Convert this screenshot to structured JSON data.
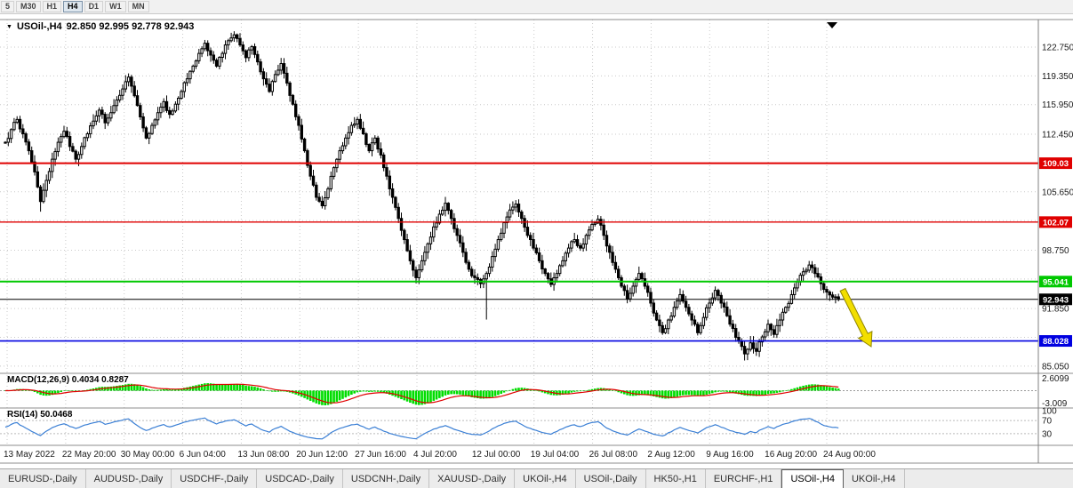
{
  "toolbar": {
    "timeframes": [
      "5",
      "M30",
      "H1",
      "H4",
      "D1",
      "W1",
      "MN"
    ],
    "active": "H4"
  },
  "chart": {
    "symbol": "USOil-,H4",
    "ohlc": "92.850 92.995 92.778 92.943",
    "open": "92.850",
    "high": "92.995",
    "low": "92.778",
    "close": "92.943"
  },
  "price_axis": {
    "ticks": [
      {
        "label": "122.750",
        "price": 122.75,
        "visible": true
      },
      {
        "label": "119.350",
        "price": 119.35,
        "visible": true
      },
      {
        "label": "115.950",
        "price": 115.95,
        "visible": true
      },
      {
        "label": "112.450",
        "price": 112.45,
        "visible": true
      },
      {
        "label": "109.050",
        "price": 109.05,
        "visible": false
      },
      {
        "label": "105.650",
        "price": 105.65,
        "visible": true
      },
      {
        "label": "102.250",
        "price": 102.25,
        "visible": false
      },
      {
        "label": "98.750",
        "price": 98.75,
        "visible": true
      },
      {
        "label": "95.350",
        "price": 95.35,
        "visible": false
      },
      {
        "label": "91.850",
        "price": 91.85,
        "visible": true
      },
      {
        "label": "88.450",
        "price": 88.45,
        "visible": false
      },
      {
        "label": "85.050",
        "price": 85.05,
        "visible": true
      }
    ]
  },
  "levels": [
    {
      "label": "109.03",
      "price": 109.03,
      "color": "#e00000",
      "width": 2
    },
    {
      "label": "102.07",
      "price": 102.07,
      "color": "#e00000",
      "width": 1.4
    },
    {
      "label": "95.041",
      "price": 95.041,
      "color": "#00c800",
      "width": 2
    },
    {
      "label": "92.943",
      "price": 92.943,
      "color": "#000000",
      "width": 1
    },
    {
      "label": "88.028",
      "price": 88.028,
      "color": "#0000e0",
      "width": 1.6
    }
  ],
  "chart_data": {
    "type": "candlestick",
    "symbol": "USOil-,H4",
    "y_range": [
      84.2,
      126.0
    ],
    "closes": [
      111.5,
      113.0,
      114.2,
      112.5,
      110.5,
      108.0,
      104.5,
      107.0,
      109.5,
      111.5,
      112.8,
      111.0,
      109.5,
      111.0,
      112.5,
      114.0,
      115.3,
      113.8,
      115.0,
      116.5,
      117.8,
      119.2,
      117.0,
      114.5,
      112.0,
      113.5,
      115.0,
      116.3,
      114.8,
      116.0,
      117.5,
      119.0,
      120.5,
      122.0,
      123.2,
      121.8,
      120.5,
      122.0,
      123.5,
      124.2,
      123.0,
      121.5,
      122.8,
      121.0,
      119.0,
      117.5,
      119.5,
      120.8,
      118.5,
      116.0,
      113.5,
      110.5,
      107.5,
      105.0,
      104.0,
      106.0,
      108.5,
      110.5,
      112.0,
      113.5,
      114.2,
      112.5,
      110.5,
      112.0,
      110.0,
      107.5,
      105.0,
      102.5,
      100.0,
      97.5,
      95.5,
      97.5,
      99.5,
      101.5,
      103.0,
      104.3,
      102.5,
      100.5,
      98.5,
      96.5,
      95.5,
      94.8,
      96.0,
      98.0,
      100.0,
      102.0,
      103.5,
      104.2,
      102.5,
      100.5,
      99.0,
      97.5,
      96.0,
      94.7,
      96.0,
      97.5,
      99.0,
      100.0,
      99.0,
      100.5,
      101.8,
      102.4,
      100.5,
      98.5,
      96.5,
      94.5,
      93.0,
      94.5,
      96.0,
      94.5,
      92.5,
      90.5,
      89.0,
      90.5,
      92.0,
      93.5,
      92.0,
      90.5,
      89.0,
      90.8,
      92.5,
      94.0,
      92.5,
      91.0,
      89.5,
      88.0,
      86.5,
      87.8,
      86.8,
      88.5,
      90.0,
      88.8,
      90.5,
      92.0,
      93.5,
      95.0,
      96.2,
      97.0,
      96.0,
      94.8,
      93.8,
      93.2,
      92.943
    ],
    "wick_overrides_low": {
      "6": 103.3,
      "82": 90.55,
      "126": 85.72
    },
    "wick_overrides_high": {
      "39": 124.62
    },
    "x_labels": [
      "13 May 2022",
      "22 May 20:00",
      "30 May 00:00",
      "6 Jun 04:00",
      "13 Jun 08:00",
      "20 Jun 12:00",
      "27 Jun 16:00",
      "4 Jul 20:00",
      "12 Jul 00:00",
      "19 Jul 04:00",
      "26 Jul 08:00",
      "2 Aug 12:00",
      "9 Aug 16:00",
      "16 Aug 20:00",
      "24 Aug 00:00"
    ]
  },
  "macd": {
    "label": "MACD(12,26,9) 0.4034 0.8287",
    "axis_top": "2.6099",
    "axis_bottom": "-3.009",
    "histogram_color": "#00dd00",
    "signal_color": "#e00000",
    "fast": 12,
    "slow": 26,
    "signal_period": 9
  },
  "rsi": {
    "label": "RSI(14) 50.0468",
    "period": 14,
    "line_color": "#3a7fd5",
    "axis": [
      {
        "label": "100",
        "value": 100
      },
      {
        "label": "70",
        "value": 70
      },
      {
        "label": "30",
        "value": 30
      }
    ],
    "dashed_levels": [
      70,
      30
    ]
  },
  "annotation": {
    "type": "sell-arrow",
    "color": "#f2de00",
    "outline": "#8f8400"
  },
  "marker": {
    "type": "down-triangle",
    "color": "#000000"
  },
  "tabs": {
    "items": [
      "EURUSD-,Daily",
      "AUDUSD-,Daily",
      "USDCHF-,Daily",
      "USDCAD-,Daily",
      "USDCNH-,Daily",
      "XAUUSD-,Daily",
      "UKOil-,H4",
      "USOil-,Daily",
      "HK50-,H1",
      "EURCHF-,H1",
      "USOil-,H4",
      "UKOil-,H4"
    ],
    "active_index": 10
  },
  "colors": {
    "grid": "#c9c9c9",
    "candle_up_fill": "#ffffff",
    "candle_down_fill": "#000000",
    "candle_outline": "#000000",
    "axis_text": "#1a1a1a"
  }
}
